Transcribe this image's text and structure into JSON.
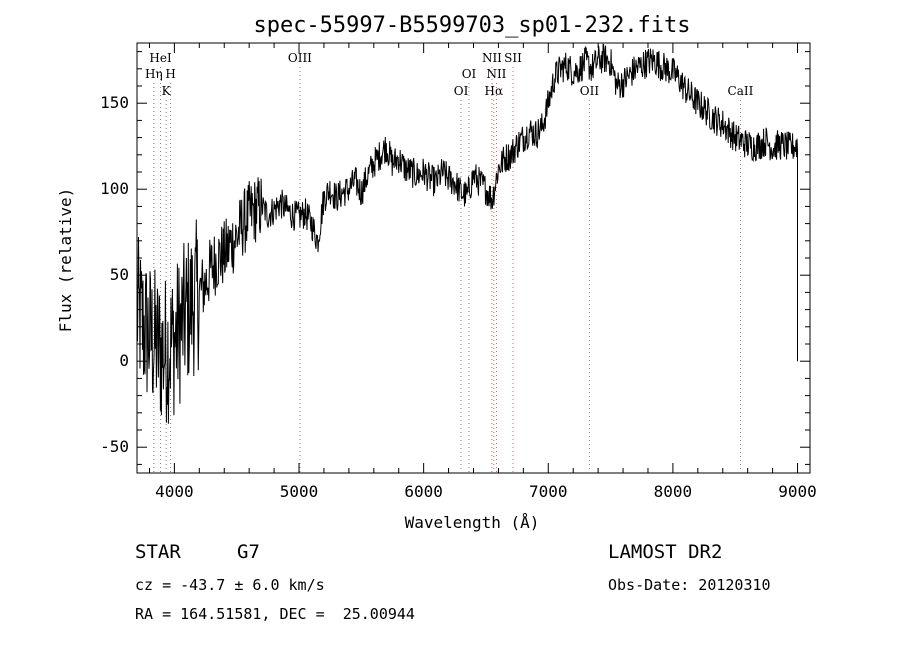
{
  "chart_data": {
    "type": "line",
    "title": "spec-55997-B5599703_sp01-232.fits",
    "xlabel": "Wavelength (Å)",
    "ylabel": "Flux (relative)",
    "xlim": [
      3700,
      9100
    ],
    "ylim": [
      -65,
      185
    ],
    "x_ticks": [
      4000,
      5000,
      6000,
      7000,
      8000,
      9000
    ],
    "y_ticks": [
      -50,
      0,
      50,
      100,
      150
    ],
    "grid": false,
    "series": [
      {
        "x": [
          3700,
          3750,
          3800,
          3850,
          3900,
          3950,
          4000,
          4050,
          4100,
          4150,
          4200,
          4250,
          4300,
          4350,
          4400,
          4450,
          4500,
          4550,
          4600,
          4650,
          4700,
          4750,
          4800,
          4850,
          4900,
          4950,
          5000,
          5050,
          5100,
          5150,
          5200,
          5250,
          5300,
          5350,
          5400,
          5450,
          5500,
          5550,
          5600,
          5650,
          5700,
          5750,
          5800,
          5850,
          5900,
          5950,
          6000,
          6050,
          6100,
          6150,
          6200,
          6250,
          6300,
          6350,
          6400,
          6450,
          6500,
          6550,
          6600,
          6650,
          6700,
          6750,
          6800,
          6850,
          6900,
          6950,
          7000,
          7050,
          7100,
          7150,
          7200,
          7250,
          7300,
          7350,
          7400,
          7450,
          7500,
          7550,
          7600,
          7650,
          7700,
          7750,
          7800,
          7850,
          7900,
          7950,
          8000,
          8050,
          8100,
          8150,
          8200,
          8250,
          8300,
          8350,
          8400,
          8450,
          8500,
          8550,
          8600,
          8650,
          8700,
          8750,
          8800,
          8850,
          8900,
          8950,
          9000
        ],
        "y": [
          30,
          20,
          15,
          10,
          5,
          8,
          12,
          20,
          28,
          35,
          40,
          45,
          55,
          60,
          62,
          68,
          72,
          80,
          85,
          88,
          90,
          85,
          88,
          92,
          88,
          85,
          84,
          86,
          80,
          70,
          95,
          100,
          95,
          98,
          100,
          105,
          98,
          108,
          115,
          120,
          125,
          115,
          118,
          112,
          110,
          108,
          110,
          106,
          104,
          110,
          106,
          104,
          98,
          96,
          108,
          104,
          100,
          94,
          112,
          118,
          120,
          126,
          130,
          134,
          132,
          136,
          150,
          165,
          170,
          172,
          168,
          170,
          174,
          170,
          175,
          176,
          174,
          160,
          162,
          166,
          170,
          172,
          174,
          175,
          172,
          170,
          168,
          164,
          158,
          154,
          150,
          147,
          143,
          140,
          138,
          134,
          130,
          128,
          126,
          125,
          126,
          128,
          124,
          126,
          125,
          124,
          126
        ]
      }
    ],
    "line_markers": [
      {
        "label": "HeI",
        "x": 3889,
        "row": 0,
        "color": "#808080"
      },
      {
        "label": "Hη",
        "x": 3835,
        "row": 1,
        "color": "#808080"
      },
      {
        "label": "H",
        "x": 3970,
        "row": 1,
        "color": "#808080"
      },
      {
        "label": "K",
        "x": 3934,
        "row": 2,
        "color": "#808080"
      },
      {
        "label": "OIII",
        "x": 5007,
        "row": 0,
        "color": "#808080"
      },
      {
        "label": "OI",
        "x": 6364,
        "row": 1,
        "color": "#808080"
      },
      {
        "label": "OI",
        "x": 6300,
        "row": 2,
        "color": "#808080"
      },
      {
        "label": "NII",
        "x": 6548,
        "row": 0,
        "color": "#cc6666"
      },
      {
        "label": "SII",
        "x": 6717,
        "row": 0,
        "color": "#cc6666"
      },
      {
        "label": "NII",
        "x": 6584,
        "row": 1,
        "color": "#cc6666"
      },
      {
        "label": "Hα",
        "x": 6563,
        "row": 2,
        "color": "#cc6666"
      },
      {
        "label": "OII",
        "x": 7330,
        "row": 2,
        "color": "#cc6666"
      },
      {
        "label": "CaII",
        "x": 8542,
        "row": 2,
        "color": "#cc6666"
      }
    ]
  },
  "info": {
    "class_label": "STAR",
    "subclass_label": "G7",
    "cz": "cz = -43.7 ± 6.0 km/s",
    "coords": "RA = 164.51581, DEC =  25.00944",
    "survey": "LAMOST DR2",
    "obs_date": "Obs-Date: 20120310"
  }
}
